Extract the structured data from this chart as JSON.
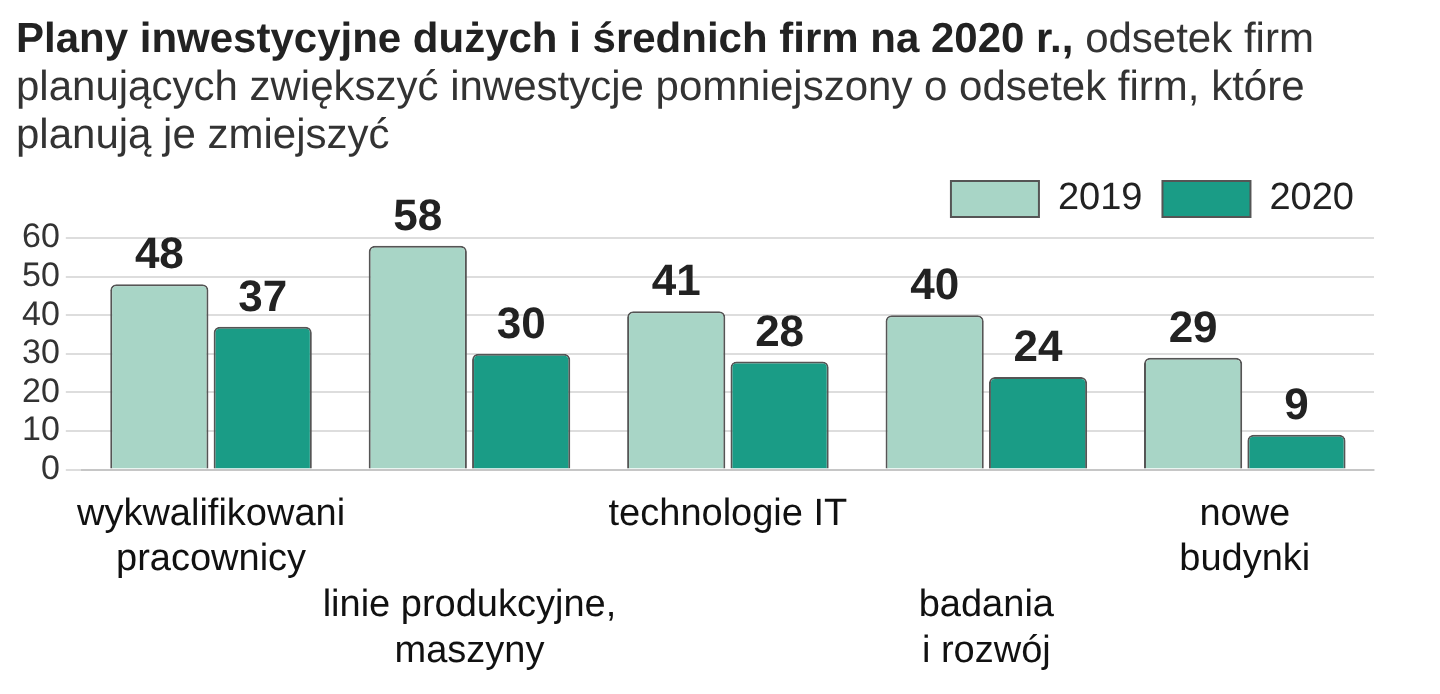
{
  "chart_data": {
    "type": "bar",
    "title": "Plany inwestycyjne dużych i średnich firm na 2020 r.,",
    "subtitle": "odsetek firm planujących zwiększyć inwestycje pomniejszony o odsetek firm, które planują je zmiejszyć",
    "categories": [
      "wykwalifikowani\npracownicy",
      "linie produkcyjne,\nmaszyny",
      "technologie IT",
      "badania\ni rozwój",
      "nowe\nbudynki"
    ],
    "series": [
      {
        "name": "2019",
        "color": "#a8d5c6",
        "values": [
          48,
          58,
          41,
          40,
          29
        ]
      },
      {
        "name": "2020",
        "color": "#1a9c86",
        "values": [
          37,
          30,
          28,
          24,
          9
        ]
      }
    ],
    "ylim": [
      0,
      60
    ],
    "yticks": [
      0,
      10,
      20,
      30,
      40,
      50,
      60
    ],
    "grid": "y",
    "legend": "top right",
    "data_labels": true
  }
}
